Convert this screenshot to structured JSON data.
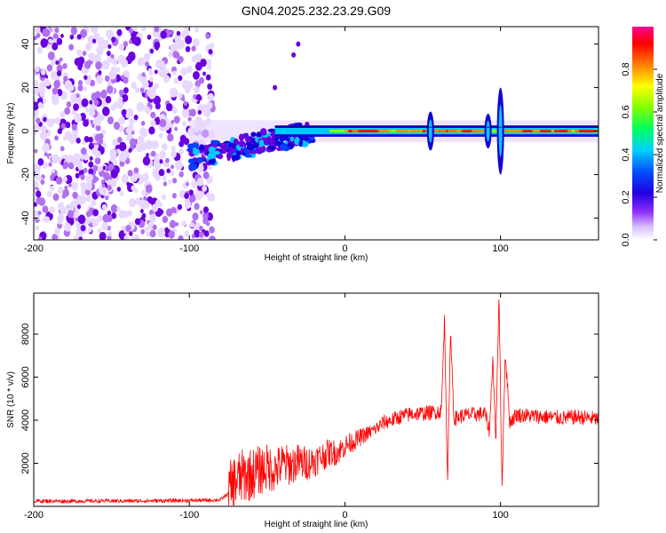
{
  "title": "GN04.2025.232.23.29.G09",
  "chart_data": [
    {
      "type": "heatmap",
      "title": "GN04.2025.232.23.29.G09",
      "xlabel": "Height of straight line (km)",
      "ylabel": "Frequency (Hz)",
      "xlim": [
        -200,
        163
      ],
      "ylim": [
        -50,
        48
      ],
      "xticks": [
        -200,
        -100,
        0,
        100
      ],
      "yticks": [
        -40,
        -20,
        0,
        20,
        40
      ],
      "colormap": [
        "#ffffff",
        "#e8d8ff",
        "#b070f0",
        "#6a00e0",
        "#1400d8",
        "#0040ff",
        "#00c8ff",
        "#00ff60",
        "#80ff00",
        "#ffff00",
        "#ff8000",
        "#ff0000",
        "#ff0090"
      ],
      "colorbar": {
        "label": "Normalized spectral amplitude",
        "range": [
          0,
          1
        ],
        "ticks": [
          "0.0",
          "0.2",
          "0.4",
          "0.6",
          "0.8"
        ]
      },
      "features": [
        {
          "description": "noise region",
          "x_range": [
            -200,
            -85
          ],
          "freq_range": [
            -50,
            48
          ]
        },
        {
          "description": "signal line",
          "x_range": [
            -100,
            163
          ],
          "freq": 0
        }
      ]
    },
    {
      "type": "line",
      "xlabel": "Height of straight line (km)",
      "ylabel": "SNR (10 * v/v)",
      "xlim": [
        -200,
        163
      ],
      "ylim": [
        0,
        9900
      ],
      "xticks": [
        -200,
        -100,
        0,
        100
      ],
      "yticks": [
        2000,
        4000,
        6000,
        8000
      ],
      "color": "#ff0000",
      "series": [
        {
          "x": [
            -200,
            -180,
            -160,
            -140,
            -120,
            -100,
            -90,
            -80,
            -75,
            -70,
            -65,
            -60,
            -55,
            -50,
            -45,
            -40,
            -35,
            -30,
            -25,
            -20,
            -15,
            -10,
            -5,
            0,
            5,
            10,
            15,
            20,
            25,
            30,
            35,
            40,
            45,
            50,
            55,
            60,
            62,
            64,
            66,
            68,
            70,
            72,
            75,
            80,
            85,
            90,
            93,
            95,
            97,
            99,
            101,
            103,
            106,
            110,
            120,
            130,
            140,
            150,
            163
          ],
          "y": [
            250,
            240,
            250,
            250,
            260,
            270,
            280,
            300,
            600,
            1200,
            1400,
            1500,
            1650,
            1800,
            1700,
            1950,
            1900,
            2050,
            2000,
            2100,
            2300,
            2500,
            2500,
            2800,
            3000,
            3200,
            3400,
            3600,
            3900,
            4000,
            4150,
            4250,
            4300,
            4320,
            4350,
            4400,
            4420,
            8700,
            1200,
            8200,
            4100,
            4100,
            4200,
            4250,
            4280,
            4300,
            3500,
            7000,
            3000,
            9900,
            800,
            7200,
            3900,
            4250,
            4200,
            4150,
            4100,
            4150,
            4050
          ]
        }
      ]
    }
  ]
}
